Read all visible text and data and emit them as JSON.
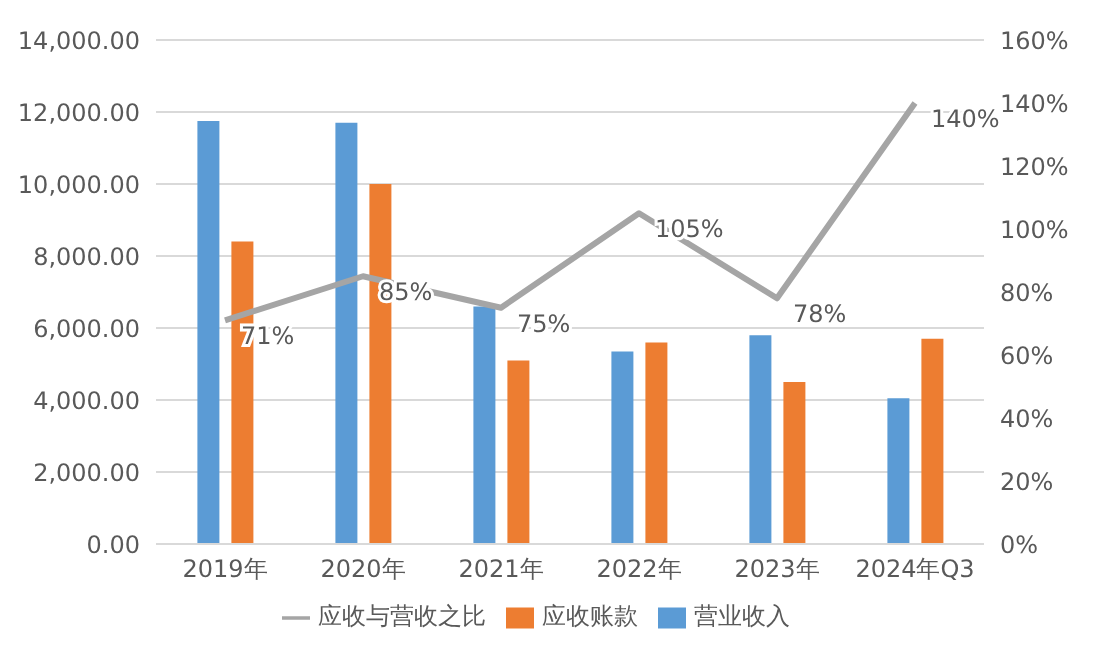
{
  "chart_data": {
    "type": "bar",
    "categories": [
      "2019年",
      "2020年",
      "2021年",
      "2022年",
      "2023年",
      "2024年Q3"
    ],
    "series": [
      {
        "name": "营业收入",
        "color": "#5b9bd5",
        "values": [
          11750,
          11700,
          6600,
          5350,
          5800,
          4050
        ]
      },
      {
        "name": "应收账款",
        "color": "#ed7d31",
        "values": [
          8400,
          10000,
          5100,
          5600,
          4500,
          5700
        ]
      },
      {
        "name": "应收与营收之比",
        "type": "line",
        "axis": "y2",
        "color": "#a5a5a5",
        "values": [
          71,
          85,
          75,
          105,
          78,
          140
        ],
        "value_labels": [
          "71%",
          "85%",
          "75%",
          "105%",
          "78%",
          "140%"
        ]
      }
    ],
    "ylim": [
      0,
      14000
    ],
    "yticks": [
      {
        "value": 0,
        "label": "0.00"
      },
      {
        "value": 2000,
        "label": "2,000.00"
      },
      {
        "value": 4000,
        "label": "4,000.00"
      },
      {
        "value": 6000,
        "label": "6,000.00"
      },
      {
        "value": 8000,
        "label": "8,000.00"
      },
      {
        "value": 10000,
        "label": "10,000.00"
      },
      {
        "value": 12000,
        "label": "12,000.00"
      },
      {
        "value": 14000,
        "label": "14,000.00"
      }
    ],
    "y2lim": [
      0,
      160
    ],
    "y2ticks": [
      {
        "value": 0,
        "label": "0%"
      },
      {
        "value": 20,
        "label": "20%"
      },
      {
        "value": 40,
        "label": "40%"
      },
      {
        "value": 60,
        "label": "60%"
      },
      {
        "value": 80,
        "label": "80%"
      },
      {
        "value": 100,
        "label": "100%"
      },
      {
        "value": 120,
        "label": "120%"
      },
      {
        "value": 140,
        "label": "140%"
      },
      {
        "value": 160,
        "label": "160%"
      }
    ],
    "grid": "y",
    "legend": "bottom",
    "marker": "none",
    "line_style": "solid"
  }
}
